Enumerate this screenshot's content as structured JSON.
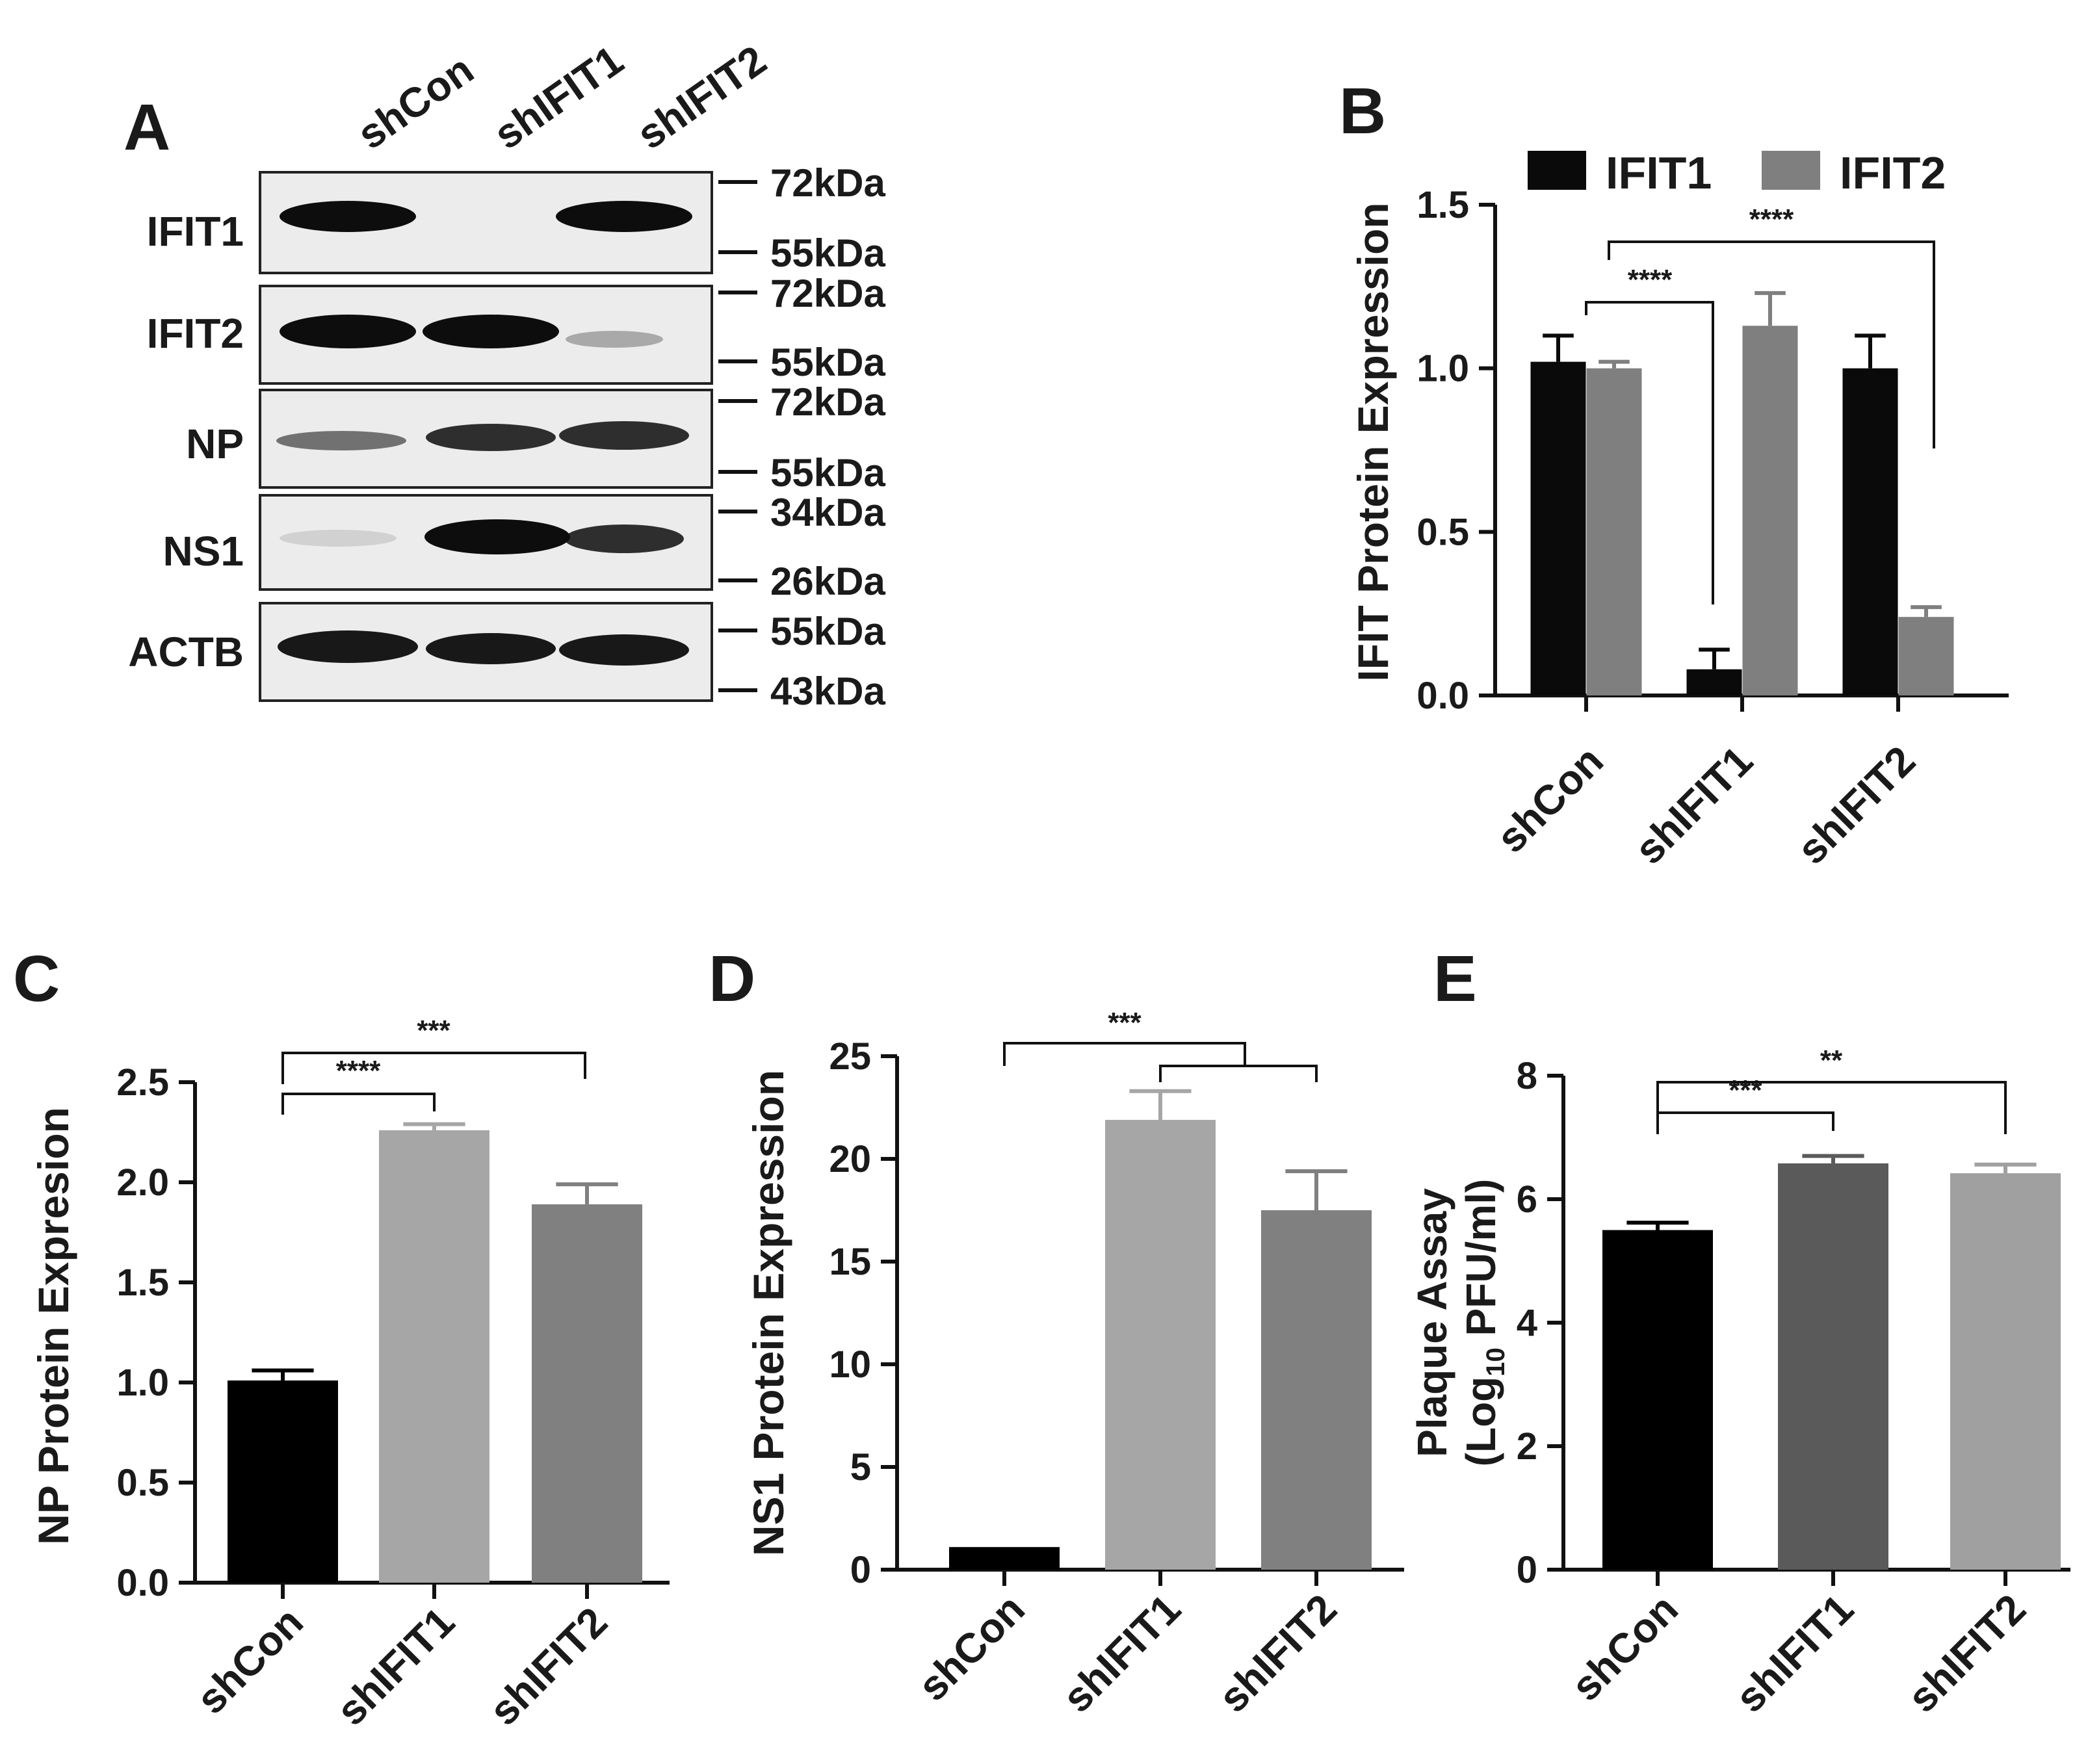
{
  "panels": {
    "A": "A",
    "B": "B",
    "C": "C",
    "D": "D",
    "E": "E"
  },
  "blot": {
    "lanes": [
      "shCon",
      "shIFIT1",
      "shIFIT2"
    ],
    "rows": [
      {
        "label": "IFIT1",
        "markers": [
          "72kDa",
          "55kDa"
        ],
        "intensity": [
          1.0,
          0.0,
          1.0
        ]
      },
      {
        "label": "IFIT2",
        "markers": [
          "72kDa",
          "55kDa"
        ],
        "intensity": [
          1.0,
          1.0,
          0.3
        ]
      },
      {
        "label": "NP",
        "markers": [
          "72kDa",
          "55kDa"
        ],
        "intensity": [
          0.55,
          0.85,
          0.85
        ]
      },
      {
        "label": "NS1",
        "markers": [
          "34kDa",
          "26kDa"
        ],
        "intensity": [
          0.12,
          1.0,
          0.85
        ]
      },
      {
        "label": "ACTB",
        "markers": [
          "55kDa",
          "43kDa"
        ],
        "intensity": [
          0.95,
          0.95,
          0.95
        ]
      }
    ]
  },
  "chart_data": [
    {
      "panel": "B",
      "type": "bar",
      "categories": [
        "shCon",
        "shIFIT1",
        "shIFIT2"
      ],
      "series": [
        {
          "name": "IFIT1",
          "values": [
            1.02,
            0.08,
            1.0
          ],
          "errors": [
            0.08,
            0.06,
            0.1
          ],
          "color": "#0a0a0a"
        },
        {
          "name": "IFIT2",
          "values": [
            1.0,
            1.13,
            0.24
          ],
          "errors": [
            0.02,
            0.1,
            0.03
          ],
          "color": "#7f7f7f"
        }
      ],
      "ylabel": "IFIT Protein Expression",
      "ylim": [
        0,
        1.5
      ],
      "yticks": [
        "0.0",
        "0.5",
        "1.0",
        "1.5"
      ],
      "legend": "top",
      "significance": [
        "****",
        "****"
      ]
    },
    {
      "panel": "C",
      "type": "bar",
      "categories": [
        "shCon",
        "shIFIT1",
        "shIFIT2"
      ],
      "values": [
        1.01,
        2.26,
        1.89
      ],
      "errors": [
        0.05,
        0.03,
        0.1
      ],
      "colors": [
        "#000000",
        "#a6a6a6",
        "#808080"
      ],
      "ylabel": "NP Protein Expresion",
      "ylim": [
        0,
        2.5
      ],
      "yticks": [
        "0.0",
        "0.5",
        "1.0",
        "1.5",
        "2.0",
        "2.5"
      ],
      "significance": [
        "****",
        "***"
      ]
    },
    {
      "panel": "D",
      "type": "bar",
      "categories": [
        "shCon",
        "shIFIT1",
        "shIFIT2"
      ],
      "values": [
        1.1,
        21.9,
        17.5
      ],
      "errors": [
        0,
        1.4,
        1.9
      ],
      "colors": [
        "#000000",
        "#a6a6a6",
        "#808080"
      ],
      "ylabel": "NS1 Protein Expression",
      "ylim": [
        0,
        25
      ],
      "yticks": [
        "0",
        "5",
        "10",
        "15",
        "20",
        "25"
      ],
      "significance": [
        "***"
      ]
    },
    {
      "panel": "E",
      "type": "bar",
      "categories": [
        "shCon",
        "shIFIT1",
        "shIFIT2"
      ],
      "values": [
        5.5,
        6.58,
        6.42
      ],
      "errors": [
        0.12,
        0.12,
        0.14
      ],
      "colors": [
        "#000000",
        "#5a5a5a",
        "#a0a0a0"
      ],
      "ylabel_line1": "Plaque Assay",
      "ylabel_line2_prefix": "(Log",
      "ylabel_line2_sub": "10",
      "ylabel_line2_suffix": " PFU/ml)",
      "ylim": [
        0,
        8
      ],
      "yticks": [
        "0",
        "2",
        "4",
        "6",
        "8"
      ],
      "significance": [
        "***",
        "**"
      ]
    }
  ]
}
